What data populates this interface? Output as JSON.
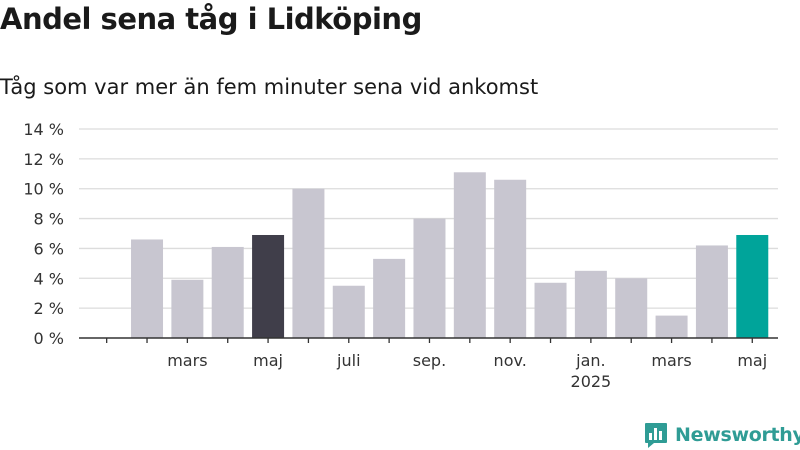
{
  "title": "Andel sena tåg i Lidköping",
  "subtitle": "Tåg som var mer än fem minuter sena vid ankomst",
  "brand": {
    "name": "Newsworthy",
    "color": "#2f9c95"
  },
  "chart_data": {
    "type": "bar",
    "title": "Andel sena tåg i Lidköping",
    "subtitle": "Tåg som var mer än fem minuter sena vid ankomst",
    "ylim": [
      0,
      14
    ],
    "yticks": [
      0,
      2,
      4,
      6,
      8,
      10,
      12,
      14
    ],
    "ytick_suffix": " %",
    "grid": true,
    "colors": {
      "default": "#c8c6d0",
      "highlight_prev": "#403e4a",
      "highlight_current": "#00a49a",
      "grid": "#dcdcdc",
      "axis": "#333333"
    },
    "categories": [
      "2024-01",
      "2024-02",
      "2024-03",
      "2024-04",
      "2024-05",
      "2024-06",
      "2024-07",
      "2024-08",
      "2024-09",
      "2024-10",
      "2024-11",
      "2024-12",
      "2025-01",
      "2025-02",
      "2025-03",
      "2025-04",
      "2025-05"
    ],
    "values": [
      null,
      6.6,
      3.9,
      6.1,
      6.9,
      10.0,
      3.5,
      5.3,
      8.0,
      11.1,
      10.6,
      3.7,
      4.5,
      4.0,
      1.5,
      6.2,
      6.9
    ],
    "bar_colors": [
      "default",
      "default",
      "default",
      "default",
      "highlight_prev",
      "default",
      "default",
      "default",
      "default",
      "default",
      "default",
      "default",
      "default",
      "default",
      "default",
      "default",
      "highlight_current"
    ],
    "xtick_labels": [
      {
        "index": 2,
        "label": "mars"
      },
      {
        "index": 4,
        "label": "maj"
      },
      {
        "index": 6,
        "label": "juli"
      },
      {
        "index": 8,
        "label": "sep."
      },
      {
        "index": 10,
        "label": "nov."
      },
      {
        "index": 12,
        "label": "jan.",
        "sublabel": "2025"
      },
      {
        "index": 14,
        "label": "mars"
      },
      {
        "index": 16,
        "label": "maj"
      }
    ]
  }
}
